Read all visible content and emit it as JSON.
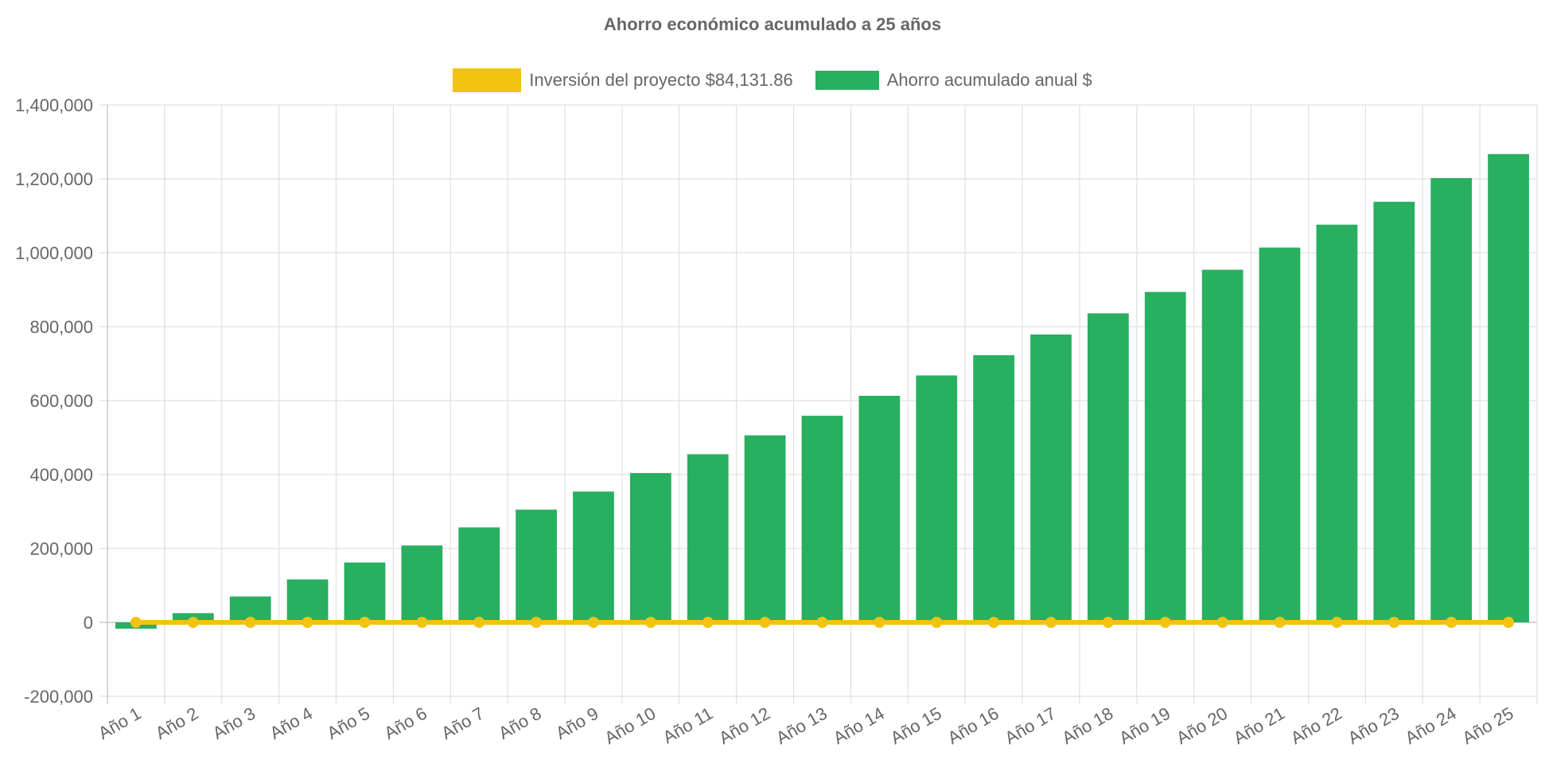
{
  "chart_data": {
    "type": "bar",
    "title": "Ahorro económico acumulado a 25 años",
    "categories": [
      "Año 1",
      "Año 2",
      "Año 3",
      "Año 4",
      "Año 5",
      "Año 6",
      "Año 7",
      "Año 8",
      "Año 9",
      "Año 10",
      "Año 11",
      "Año 12",
      "Año 13",
      "Año 14",
      "Año 15",
      "Año 16",
      "Año 17",
      "Año 18",
      "Año 19",
      "Año 20",
      "Año 21",
      "Año 22",
      "Año 23",
      "Año 24",
      "Año 25"
    ],
    "series": [
      {
        "name": "Inversión del proyecto $84,131.86",
        "type": "line",
        "color": "#f2c311",
        "values": [
          0,
          0,
          0,
          0,
          0,
          0,
          0,
          0,
          0,
          0,
          0,
          0,
          0,
          0,
          0,
          0,
          0,
          0,
          0,
          0,
          0,
          0,
          0,
          0,
          0
        ]
      },
      {
        "name": "Ahorro acumulado anual $",
        "type": "bar",
        "color": "#28af60",
        "values": [
          -17000,
          25000,
          70000,
          116000,
          162000,
          208000,
          257000,
          305000,
          354000,
          404000,
          455000,
          506000,
          559000,
          613000,
          668000,
          723000,
          779000,
          836000,
          894000,
          954000,
          1014000,
          1076000,
          1138000,
          1202000,
          1267000
        ]
      }
    ],
    "yticks": [
      "1,400,000",
      "1,200,000",
      "1,000,000",
      "800,000",
      "600,000",
      "400,000",
      "200,000",
      "0",
      "-200,000"
    ],
    "ylim": [
      -200000,
      1400000
    ],
    "grid": true,
    "legend_position": "top"
  }
}
